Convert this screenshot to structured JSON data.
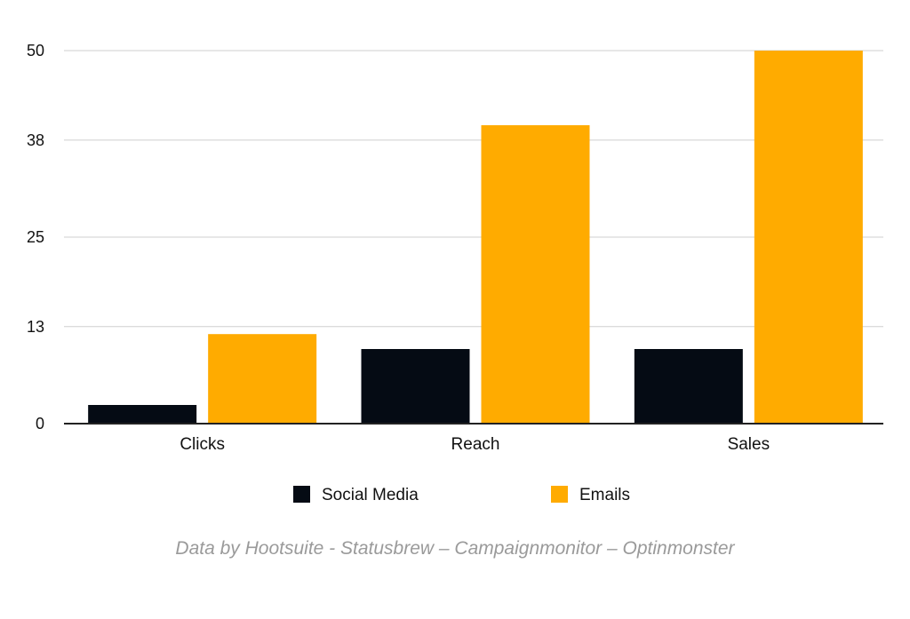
{
  "chart_data": {
    "type": "bar",
    "categories": [
      "Clicks",
      "Reach",
      "Sales"
    ],
    "series": [
      {
        "name": "Social Media",
        "values": [
          2.5,
          10,
          10
        ],
        "color": "#050b14"
      },
      {
        "name": "Emails",
        "values": [
          12,
          40,
          50
        ],
        "color": "#ffab00"
      }
    ],
    "y_ticks": [
      "0",
      "13",
      "25",
      "38",
      "50"
    ],
    "ylim": [
      0,
      50
    ],
    "grid": true,
    "legend_position": "bottom",
    "title": "",
    "xlabel": "",
    "ylabel": ""
  },
  "source_note": "Data by Hootsuite - Statusbrew – Campaignmonitor – Optinmonster"
}
